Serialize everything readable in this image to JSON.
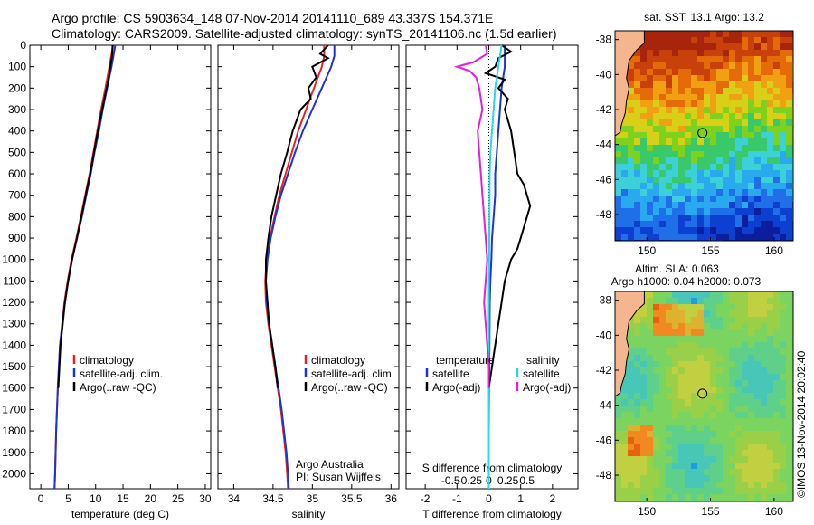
{
  "header": {
    "line1": "Argo profile: CS 5903634_148 07-Nov-2014 20141110_689 43.337S 154.371E",
    "line2": "Climatology: CARS2009. Satellite-adjusted climatology: synTS_20141106.nc (1.5d earlier)"
  },
  "footer": {
    "credit1": "Argo Australia",
    "credit2": "PI: Susan Wijffels",
    "stamp": "©IMOS 13-Nov-2014 20:02:40"
  },
  "colors": {
    "climatology": "#e8231e",
    "satellite": "#1a34d6",
    "argo": "#000000",
    "sal_satellite": "#28d8e8",
    "sal_argo": "#e020e0",
    "land": "#f5b58f"
  },
  "chart_data": [
    {
      "type": "line",
      "xlabel": "temperature (deg C)",
      "ylabel": "",
      "xlim": [
        -2,
        31
      ],
      "ylim": [
        2070,
        0
      ],
      "xticks": [
        0,
        5,
        10,
        15,
        20,
        25,
        30
      ],
      "yticks": [
        0,
        100,
        200,
        300,
        400,
        500,
        600,
        700,
        800,
        900,
        1000,
        1100,
        1200,
        1300,
        1400,
        1500,
        1600,
        1700,
        1800,
        1900,
        2000
      ],
      "legend": [
        "climatology",
        "satellite-adj. clim.",
        "Argo(..raw -QC)"
      ],
      "legend_loc": "lower-center",
      "series": [
        {
          "name": "climatology",
          "depth": [
            0,
            100,
            200,
            300,
            400,
            500,
            600,
            700,
            800,
            900,
            1000,
            1100,
            1200,
            1300,
            1400,
            1600,
            1800,
            2000,
            2070
          ],
          "values": [
            13.2,
            12.5,
            11.8,
            11.0,
            10.3,
            9.6,
            8.9,
            8.1,
            7.3,
            6.5,
            5.6,
            4.9,
            4.3,
            3.9,
            3.5,
            3.1,
            2.8,
            2.6,
            2.5
          ]
        },
        {
          "name": "satellite-adj. clim.",
          "depth": [
            0,
            100,
            200,
            300,
            400,
            500,
            600,
            700,
            800,
            900,
            1000,
            1100,
            1200,
            1300,
            1400,
            1600,
            1800,
            2000,
            2070
          ],
          "values": [
            13.6,
            12.9,
            12.1,
            11.3,
            10.6,
            9.8,
            9.1,
            8.3,
            7.5,
            6.6,
            5.7,
            5.0,
            4.4,
            3.9,
            3.5,
            3.1,
            2.8,
            2.6,
            2.5
          ]
        },
        {
          "name": "Argo(..raw -QC)",
          "depth": [
            0,
            50,
            100,
            150,
            200,
            250,
            300,
            400,
            500,
            600,
            700,
            800,
            900,
            1000,
            1100,
            1200,
            1300,
            1400,
            1600
          ],
          "values": [
            13.1,
            13.0,
            12.7,
            12.4,
            12.0,
            11.6,
            11.2,
            10.4,
            9.7,
            9.0,
            8.2,
            7.4,
            6.6,
            5.7,
            5.0,
            4.4,
            4.0,
            3.6,
            3.2
          ]
        }
      ]
    },
    {
      "type": "line",
      "xlabel": "salinity",
      "xlim": [
        33.8,
        36.1
      ],
      "ylim": [
        2070,
        0
      ],
      "xticks": [
        34,
        34.5,
        35,
        35.5,
        36
      ],
      "legend": [
        "climatology",
        "satellite-adj. clim.",
        "Argo(..raw -QC)"
      ],
      "legend_loc": "lower-right",
      "series": [
        {
          "name": "climatology",
          "depth": [
            0,
            50,
            100,
            200,
            300,
            400,
            500,
            600,
            700,
            800,
            900,
            1000,
            1100,
            1200,
            1300,
            1400,
            1500,
            1600,
            1700,
            1800,
            1900,
            2000,
            2070
          ],
          "values": [
            35.15,
            35.15,
            35.12,
            35.02,
            34.92,
            34.82,
            34.74,
            34.66,
            34.58,
            34.52,
            34.46,
            34.42,
            34.4,
            34.41,
            34.44,
            34.48,
            34.52,
            34.56,
            34.6,
            34.63,
            34.66,
            34.68,
            34.69
          ]
        },
        {
          "name": "satellite-adj. clim.",
          "depth": [
            0,
            50,
            100,
            200,
            300,
            400,
            500,
            600,
            700,
            800,
            900,
            1000,
            1100,
            1200,
            1300,
            1400,
            1500,
            1600,
            1700,
            1800,
            1900,
            2000,
            2070
          ],
          "values": [
            35.28,
            35.28,
            35.24,
            35.12,
            35.0,
            34.88,
            34.78,
            34.69,
            34.6,
            34.53,
            34.47,
            34.43,
            34.41,
            34.42,
            34.45,
            34.49,
            34.53,
            34.57,
            34.61,
            34.64,
            34.67,
            34.69,
            34.7
          ]
        },
        {
          "name": "Argo(..raw -QC)",
          "depth": [
            0,
            40,
            60,
            100,
            150,
            200,
            250,
            300,
            350,
            400,
            500,
            600,
            700,
            800,
            900,
            1000,
            1100,
            1200,
            1300,
            1400,
            1500,
            1600
          ],
          "values": [
            35.2,
            35.1,
            35.2,
            35.0,
            35.05,
            34.95,
            34.98,
            34.85,
            34.8,
            34.75,
            34.68,
            34.6,
            34.54,
            34.48,
            34.44,
            34.41,
            34.41,
            34.43,
            34.45,
            34.49,
            34.53,
            34.56
          ]
        }
      ]
    },
    {
      "type": "line",
      "xlabel": "T difference from climatology",
      "xlabel2": "S difference from climatology",
      "xlim": [
        -2.6,
        2.8
      ],
      "ylim": [
        2070,
        0
      ],
      "xticks": [
        -2,
        -1,
        0,
        1,
        2
      ],
      "xticks2": [
        "-0.5",
        "-0.25",
        "0",
        "0.25",
        "0.5"
      ],
      "legend_groups": [
        {
          "title": "temperature",
          "items": [
            "satellite",
            "Argo(-adj)"
          ]
        },
        {
          "title": "salinity",
          "items": [
            "satellite",
            "Argo(-adj)"
          ]
        }
      ],
      "legend_loc": "lower-center",
      "series": [
        {
          "name": "temperature satellite",
          "depth": [
            0,
            100,
            200,
            300,
            400,
            500,
            600,
            700,
            800,
            900,
            1000,
            1100,
            1200,
            1400,
            1600,
            1800,
            2000,
            2070
          ],
          "values": [
            0.5,
            0.5,
            0.4,
            0.35,
            0.3,
            0.25,
            0.2,
            0.2,
            0.15,
            0.1,
            0.08,
            0.05,
            0.03,
            0.02,
            0.01,
            0.0,
            0.0,
            0.0
          ]
        },
        {
          "name": "temperature Argo(-adj)",
          "depth": [
            0,
            30,
            60,
            100,
            130,
            160,
            200,
            250,
            300,
            400,
            500,
            600,
            650,
            700,
            750,
            800,
            850,
            900,
            950,
            1000,
            1100,
            1200,
            1300,
            1400,
            1500,
            1600
          ],
          "values": [
            0.4,
            0.7,
            0.3,
            0.2,
            -0.1,
            0.5,
            0.3,
            0.6,
            0.5,
            0.7,
            0.8,
            0.9,
            1.1,
            1.2,
            1.3,
            1.2,
            1.1,
            1.0,
            0.9,
            0.7,
            0.5,
            0.4,
            0.3,
            0.2,
            0.1,
            0.0
          ]
        },
        {
          "name": "salinity satellite",
          "depth": [
            0,
            100,
            200,
            300,
            400,
            500,
            600,
            800,
            1000,
            1200,
            1400,
            1600,
            1800,
            2000,
            2070
          ],
          "values": [
            0.4,
            0.3,
            0.2,
            0.15,
            0.1,
            0.05,
            0.03,
            0.02,
            0.01,
            0.0,
            0.0,
            0.0,
            0.0,
            0.0,
            0.0
          ]
        },
        {
          "name": "salinity Argo(-adj)",
          "depth": [
            0,
            40,
            80,
            100,
            120,
            150,
            200,
            300,
            400,
            500,
            600,
            700,
            800,
            900,
            1000,
            1100,
            1200,
            1300,
            1400,
            1500,
            1600
          ],
          "values": [
            -0.1,
            -0.05,
            -0.5,
            -1.0,
            -0.6,
            -0.4,
            -0.3,
            -0.2,
            -0.35,
            -0.3,
            -0.25,
            -0.2,
            -0.15,
            -0.1,
            -0.05,
            -0.1,
            -0.15,
            -0.1,
            -0.05,
            0.0,
            0.0
          ]
        }
      ]
    },
    {
      "type": "heatmap",
      "title": "sat. SST: 13.1  Argo: 13.2",
      "xlim": [
        147.5,
        161.5
      ],
      "ylim": [
        -49.5,
        -37.5
      ],
      "xticks": [
        150,
        155,
        160
      ],
      "yticks": [
        -38,
        -40,
        -42,
        -44,
        -46,
        -48
      ],
      "marker": {
        "lon": 154.37,
        "lat": -43.34
      }
    },
    {
      "type": "heatmap",
      "title": "Altim. SLA: 0.063",
      "subtitle": "Argo h1000: 0.04 h2000: 0.073",
      "xlim": [
        147.5,
        161.5
      ],
      "ylim": [
        -49.5,
        -37.5
      ],
      "xticks": [
        150,
        155,
        160
      ],
      "yticks": [
        -38,
        -40,
        -42,
        -44,
        -46,
        -48
      ],
      "marker": {
        "lon": 154.37,
        "lat": -43.34
      }
    }
  ]
}
